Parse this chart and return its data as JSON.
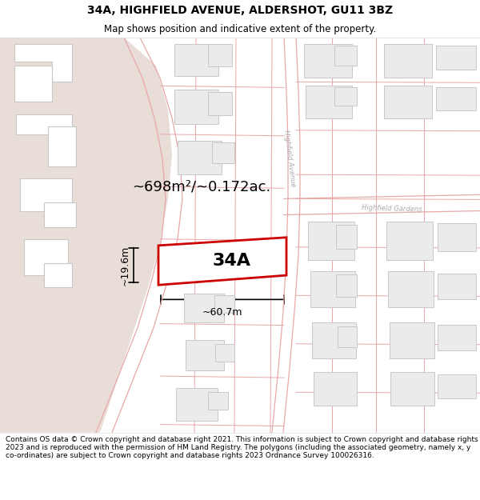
{
  "title_line1": "34A, HIGHFIELD AVENUE, ALDERSHOT, GU11 3BZ",
  "title_line2": "Map shows position and indicative extent of the property.",
  "label_34A": "34A",
  "area_label": "~698m²/~0.172ac.",
  "width_label": "~60.7m",
  "height_label": "~19.6m",
  "footer_text": "Contains OS data © Crown copyright and database right 2021. This information is subject to Crown copyright and database rights 2023 and is reproduced with the permission of HM Land Registry. The polygons (including the associated geometry, namely x, y co-ordinates) are subject to Crown copyright and database rights 2023 Ordnance Survey 100026316.",
  "bg_color": "#f9f6f4",
  "tan_color": "#e8ddd7",
  "road_line_color": "#e8a8a8",
  "plot_red": "#cc0000",
  "bldg_fill": "#ebebeb",
  "bldg_edge": "#c8c8c8",
  "street_color": "#aaaaaa",
  "title_fontsize": 10,
  "subtitle_fontsize": 8.5,
  "area_fontsize": 13,
  "label_fontsize": 16,
  "dim_fontsize": 9,
  "street_fontsize": 6
}
